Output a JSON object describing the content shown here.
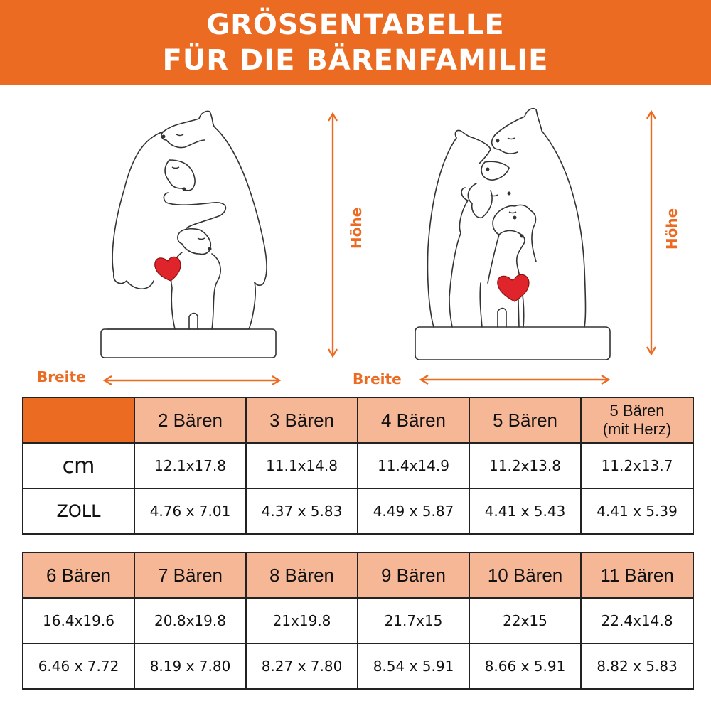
{
  "banner": {
    "line1": "GRÖSSENTABELLE",
    "line2": "FÜR DIE BÄRENFAMILIE",
    "color": "#ec6b22"
  },
  "figures": {
    "width_label": "Breite",
    "height_label": "Höhe",
    "left_description": "Three bears hugging with red heart",
    "right_description": "Bear family with red heart"
  },
  "table1": {
    "headers": [
      "2 Bären",
      "3 Bären",
      "4 Bären",
      "5 Bären"
    ],
    "header_5_line1": "5 Bären",
    "header_5_line2": "(mit Herz)",
    "rows": [
      {
        "unit": "cm",
        "values": [
          "12.1x17.8",
          "11.1x14.8",
          "11.4x14.9",
          "11.2x13.8",
          "11.2x13.7"
        ]
      },
      {
        "unit": "ZOLL",
        "values": [
          "4.76 x 7.01",
          "4.37 x 5.83",
          "4.49 x 5.87",
          "4.41 x 5.43",
          "4.41 x 5.39"
        ]
      }
    ]
  },
  "table2": {
    "headers": [
      "6 Bären",
      "7 Bären",
      "8 Bären",
      "9 Bären",
      "10 Bären",
      "11 Bären"
    ],
    "rows": [
      {
        "values": [
          "16.4x19.6",
          "20.8x19.8",
          "21x19.8",
          "21.7x15",
          "22x15",
          "22.4x14.8"
        ]
      },
      {
        "values": [
          "6.46 x 7.72",
          "8.19 x 7.80",
          "8.27 x 7.80",
          "8.54 x 5.91",
          "8.66 x 5.91",
          "8.82 x 5.83"
        ]
      }
    ]
  },
  "colors": {
    "accent": "#ec6b22",
    "header_fill": "#f5b796",
    "heart": "#e0242b"
  }
}
